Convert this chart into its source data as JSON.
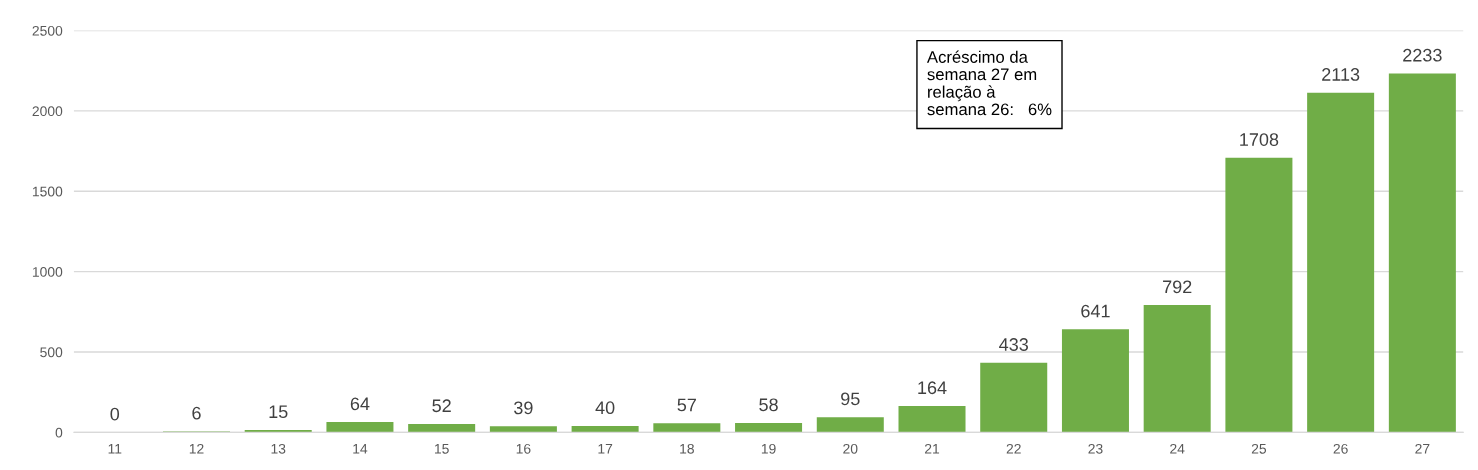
{
  "chart_data": {
    "type": "bar",
    "categories": [
      "11",
      "12",
      "13",
      "14",
      "15",
      "16",
      "17",
      "18",
      "19",
      "20",
      "21",
      "22",
      "23",
      "24",
      "25",
      "26",
      "27"
    ],
    "values": [
      0,
      6,
      15,
      64,
      52,
      39,
      40,
      57,
      58,
      95,
      164,
      433,
      641,
      792,
      1708,
      2113,
      2233
    ],
    "color": "#70ad47",
    "ylim": [
      0,
      2500
    ],
    "yticks": [
      0,
      500,
      1000,
      1500,
      2000,
      2500
    ],
    "grid": "y",
    "data_labels": true,
    "annotations": [
      "Acréscimo da\nsemana 27 em\nrelação à\nsemana 26:   6%"
    ]
  }
}
